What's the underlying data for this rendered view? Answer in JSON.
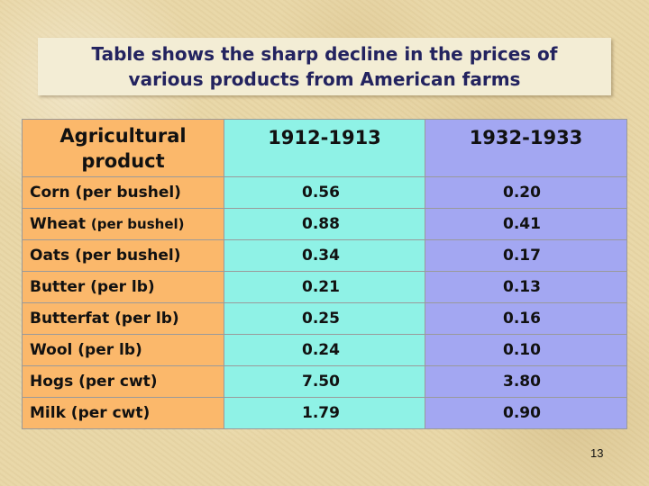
{
  "slide": {
    "title_line1": "Table shows the sharp decline in the prices of",
    "title_line2": "various products from American farms",
    "page_number": "13"
  },
  "table": {
    "headers": {
      "product_line1": "Agricultural",
      "product_line2": "product",
      "year1": "1912-1913",
      "year2": "1932-1933"
    },
    "rows": [
      {
        "product": "Corn (per bushel)",
        "y1": "0.56",
        "y2": "0.20"
      },
      {
        "product_name": "Wheat ",
        "product_unit": "(per bushel)",
        "y1": "0.88",
        "y2": "0.41"
      },
      {
        "product": "Oats (per bushel)",
        "y1": "0.34",
        "y2": "0.17"
      },
      {
        "product": "Butter (per lb)",
        "y1": "0.21",
        "y2": "0.13"
      },
      {
        "product": "Butterfat (per lb)",
        "y1": "0.25",
        "y2": "0.16"
      },
      {
        "product": "Wool (per lb)",
        "y1": "0.24",
        "y2": "0.10"
      },
      {
        "product": "Hogs (per cwt)",
        "y1": "7.50",
        "y2": "3.80"
      },
      {
        "product": "Milk (per cwt)",
        "y1": "1.79",
        "y2": "0.90"
      }
    ],
    "colors": {
      "product_column": "#fbb86b",
      "year1_column": "#8ff2e6",
      "year2_column": "#a3a7f2",
      "title_text": "#23235f"
    }
  }
}
